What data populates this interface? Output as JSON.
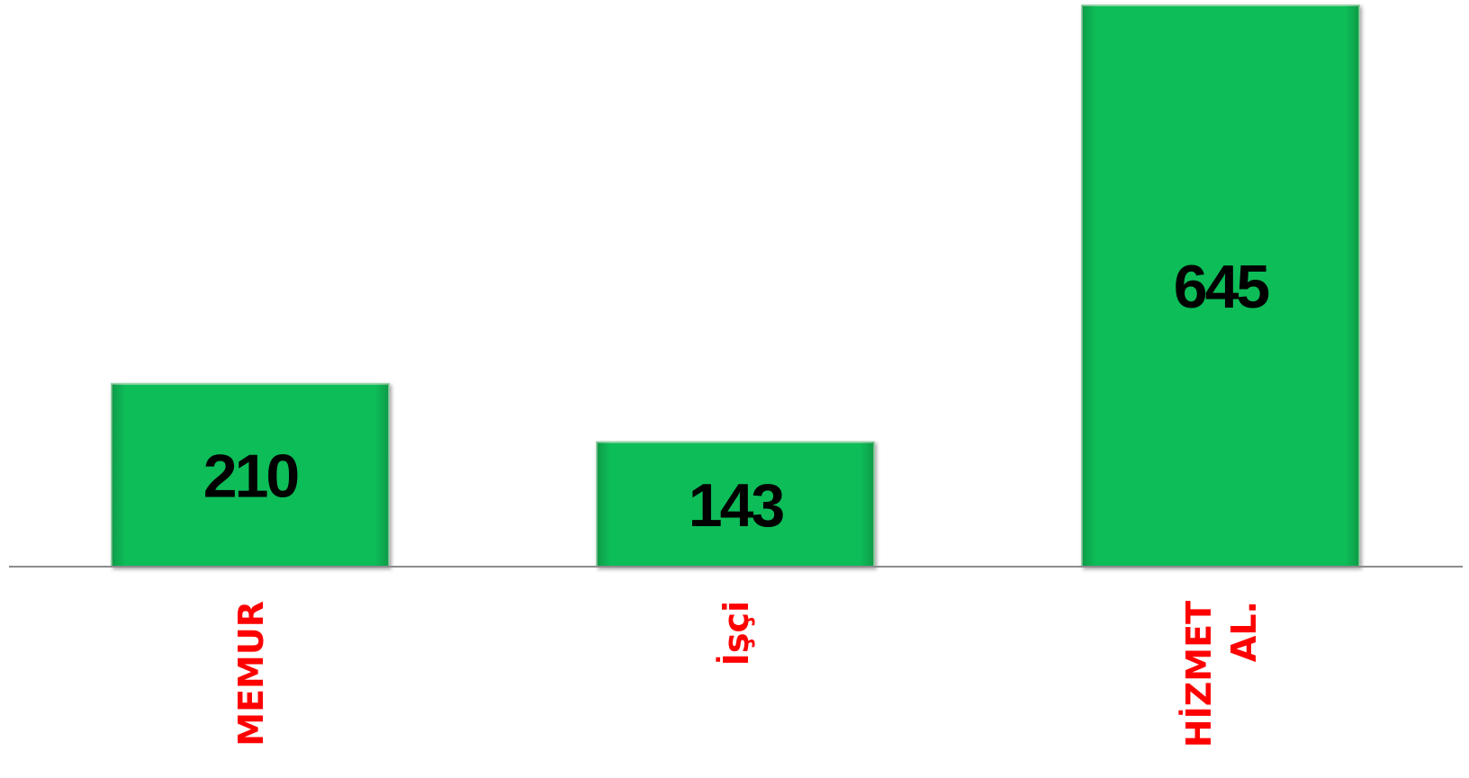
{
  "chart_data": {
    "type": "bar",
    "title": "",
    "xlabel": "",
    "ylabel": "",
    "categories": [
      "MEMUR",
      "İşçi",
      "HİZMET AL."
    ],
    "category_lines": [
      [
        "MEMUR"
      ],
      [
        "İşçi"
      ],
      [
        "HİZMET",
        "AL."
      ]
    ],
    "values": [
      210,
      143,
      645
    ],
    "value_labels": [
      "210",
      "143",
      "645"
    ],
    "ylim": [
      0,
      645
    ],
    "grid": false,
    "legend": "none",
    "colors": {
      "bar": "#08bd58",
      "bar_edge": "#8fd6a4",
      "value_text": "#000000",
      "category_text": "#ff0000",
      "axis": "#8c8c8c"
    }
  }
}
